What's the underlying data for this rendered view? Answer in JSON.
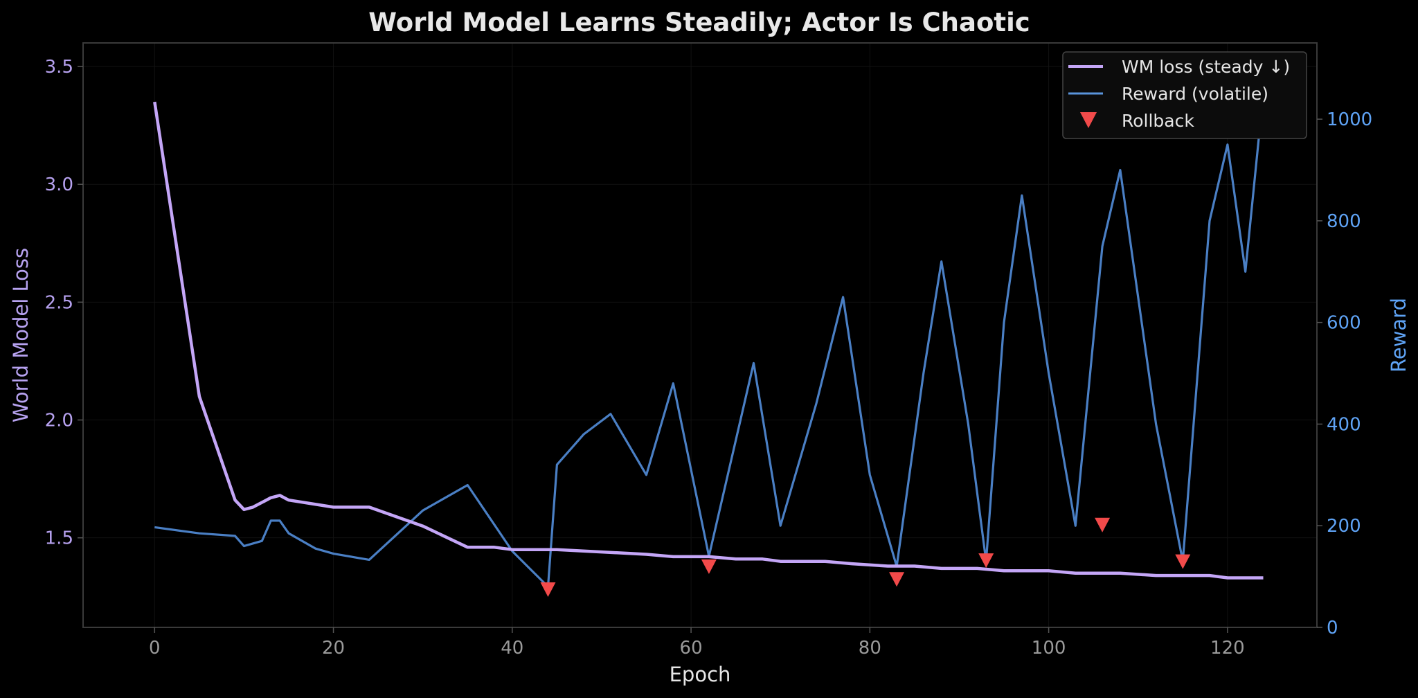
{
  "chart_data": {
    "type": "line",
    "title": "World Model Learns Steadily; Actor Is Chaotic",
    "xlabel": "Epoch",
    "ylabel_left": "World Model Loss",
    "ylabel_right": "Reward",
    "xlim": [
      -8,
      130
    ],
    "ylim_left": [
      1.12,
      3.6
    ],
    "ylim_right": [
      0,
      1150
    ],
    "xticks": [
      "0",
      "20",
      "40",
      "60",
      "80",
      "100",
      "120"
    ],
    "yticks_left": [
      "1.5",
      "2.0",
      "2.5",
      "3.0",
      "3.5"
    ],
    "yticks_right": [
      "0",
      "200",
      "400",
      "600",
      "800",
      "1000"
    ],
    "grid": true,
    "legend_position": "top-right",
    "colors": {
      "background": "#000000",
      "wm_loss": "#c4a6f7",
      "reward": "#4a7fc4",
      "rollback": "#f24a4a",
      "left_axis_text": "#b7a2f0",
      "right_axis_text": "#5fa3f5"
    },
    "series": [
      {
        "name": "WM loss (steady ↓)",
        "axis": "left",
        "x": [
          0,
          5,
          9,
          10,
          11,
          13,
          14,
          15,
          20,
          24,
          30,
          35,
          38,
          40,
          45,
          50,
          55,
          58,
          62,
          65,
          68,
          70,
          75,
          78,
          82,
          85,
          88,
          92,
          95,
          98,
          100,
          103,
          108,
          112,
          118,
          120,
          124
        ],
        "values": [
          3.35,
          2.1,
          1.66,
          1.62,
          1.63,
          1.67,
          1.68,
          1.66,
          1.63,
          1.63,
          1.55,
          1.46,
          1.46,
          1.45,
          1.45,
          1.44,
          1.43,
          1.42,
          1.42,
          1.41,
          1.41,
          1.4,
          1.4,
          1.39,
          1.38,
          1.38,
          1.37,
          1.37,
          1.36,
          1.36,
          1.36,
          1.35,
          1.35,
          1.34,
          1.34,
          1.33,
          1.33
        ]
      },
      {
        "name": "Reward (volatile)",
        "axis": "right",
        "x": [
          0,
          5,
          9,
          10,
          12,
          13,
          14,
          15,
          18,
          20,
          24,
          30,
          35,
          40,
          44,
          45,
          48,
          51,
          55,
          58,
          62,
          67,
          70,
          74,
          77,
          80,
          83,
          86,
          88,
          91,
          93,
          95,
          97,
          100,
          103,
          106,
          108,
          112,
          115,
          118,
          120,
          122,
          124
        ],
        "values": [
          197,
          185,
          180,
          160,
          170,
          210,
          210,
          185,
          155,
          145,
          133,
          230,
          280,
          150,
          80,
          320,
          380,
          420,
          300,
          480,
          140,
          520,
          200,
          440,
          650,
          300,
          120,
          500,
          720,
          400,
          130,
          600,
          850,
          500,
          200,
          750,
          900,
          400,
          130,
          800,
          950,
          700,
          1050
        ]
      },
      {
        "name": "Rollback",
        "axis": "right",
        "x": [
          44,
          62,
          83,
          93,
          106,
          115
        ],
        "values": [
          75,
          120,
          95,
          132,
          202,
          130
        ]
      }
    ]
  }
}
